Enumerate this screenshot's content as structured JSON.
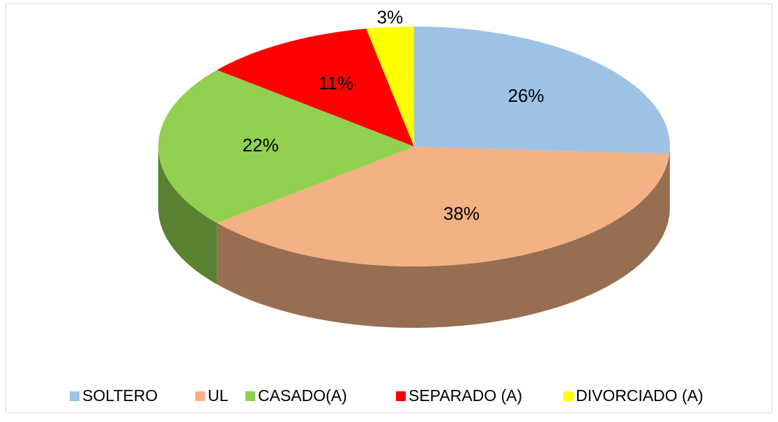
{
  "chart_data": {
    "type": "pie",
    "categories": [
      "SOLTERO",
      "UL",
      "CASADO(A)",
      "SEPARADO (A)",
      "DIVORCIADO (A)"
    ],
    "values": [
      26,
      38,
      22,
      11,
      3
    ],
    "value_labels": [
      "26%",
      "38%",
      "22%",
      "11%",
      "3%"
    ],
    "colors": [
      "#9dc3e6",
      "#f4b183",
      "#92d050",
      "#ff0000",
      "#ffff00"
    ],
    "legend": "bottom"
  }
}
